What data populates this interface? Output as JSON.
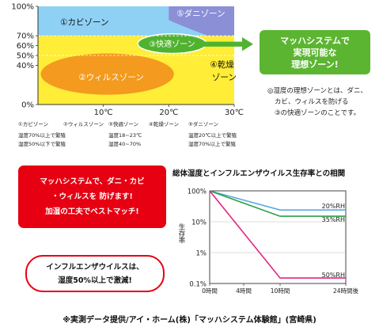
{
  "colors": {
    "yellow_bg": "#ffed37",
    "mold": "#8fd0f5",
    "mite": "#8b8fd6",
    "virus": "#f39a1f",
    "comfort": "#4fb32f",
    "dry_text": "#111111",
    "red": "#e60012",
    "line_blue": "#5aa9e0",
    "line_green": "#2aa146",
    "line_pink": "#e4257f"
  },
  "zone_chart": {
    "y_ticks": [
      "100%",
      "70%",
      "60%",
      "50%",
      "40%",
      "0%"
    ],
    "x_ticks": [
      "10℃",
      "20℃",
      "30℃"
    ],
    "zone_labels": {
      "mold": "①カビゾーン",
      "mite": "⑤ダニゾーン",
      "comfort": "③快適ゾーン",
      "virus": "②ウィルスゾーン",
      "dry_1": "④乾燥",
      "dry_2": "ゾーン"
    },
    "chart_data": {
      "type": "area",
      "xlim": [
        0,
        30
      ],
      "ylim": [
        0,
        100
      ],
      "x_ticks": [
        10,
        20,
        30
      ],
      "y_ticks": [
        0,
        40,
        50,
        60,
        70,
        100
      ],
      "zones": [
        {
          "name": "①カビゾーン",
          "condition": "湿度70%以上で繁殖"
        },
        {
          "name": "②ウィルスゾーン",
          "condition": "湿度50%以下で繁殖"
        },
        {
          "name": "③快適ゾーン",
          "temperature": "温度18~23℃",
          "humidity": "湿度40~70%"
        },
        {
          "name": "④乾燥ゾーン"
        },
        {
          "name": "⑤ダニゾーン",
          "temperature": "温度20℃以上で繁殖",
          "humidity": "湿度70%以上で繁殖"
        }
      ]
    }
  },
  "legend": {
    "mold": {
      "title": "①カビゾーン",
      "line1": "湿度70%以上で繁殖",
      "line2": "湿度50%以下で繁殖"
    },
    "virus": {
      "title": "②ウィルスゾーン"
    },
    "comfort": {
      "title": "③快適ゾーン",
      "line1": "温度18~23℃",
      "line2": "湿度40~70%"
    },
    "dry": {
      "title": "④乾燥ゾーン"
    },
    "mite": {
      "title": "⑤ダニゾーン",
      "line1": "温度20℃以上で繁殖",
      "line2": "湿度70%以上で繁殖"
    }
  },
  "arrow_box": {
    "line1": "マッハシステムで",
    "line2": "実現可能な",
    "line3": "理想ゾーン!"
  },
  "zone_note": {
    "line1": "◎湿度の理想ゾーンとは、ダニ、",
    "line2": "カビ、ウィルスを防げる",
    "line3": "③の快適ゾーンのことです。"
  },
  "red_box": {
    "line1": "マッハシステムで、ダニ・カビ",
    "line2": "・ウィルスを 防げます!",
    "line3": "加湿の工夫でベストマッチ!"
  },
  "red_outline": {
    "line1": "インフルエンザウイルスは、",
    "line2": "湿度50%以上で激減!"
  },
  "survival": {
    "title": "総体湿度とインフルエンザウイルス生存率との相関",
    "ylabel": "生存率",
    "y_ticks": [
      "100%",
      "10%",
      "1%",
      "0.1%"
    ],
    "x_ticks": [
      "0時間",
      "4時間",
      "10時間",
      "24時間後"
    ],
    "chart_data": {
      "type": "line",
      "title": "総体湿度とインフルエンザウイルス生存率との相関",
      "xlabel": "",
      "ylabel": "生存率",
      "yscale": "log",
      "ylim": [
        0.1,
        100
      ],
      "x_ticks": [
        "0時間",
        "4時間",
        "10時間",
        "24時間後"
      ],
      "y_ticks": [
        100,
        10,
        1,
        0.1
      ],
      "series": [
        {
          "name": "20%RH",
          "x": [
            0,
            10,
            24
          ],
          "y": [
            100,
            24,
            24
          ]
        },
        {
          "name": "35%RH",
          "x": [
            0,
            10,
            24
          ],
          "y": [
            100,
            15,
            15
          ]
        },
        {
          "name": "50%RH",
          "x": [
            0,
            10,
            24
          ],
          "y": [
            100,
            0.15,
            0.15
          ]
        }
      ]
    }
  },
  "footer": "※実測データ提供/アイ・ホーム(株)「マッハシステム体験館」(宮崎県)"
}
